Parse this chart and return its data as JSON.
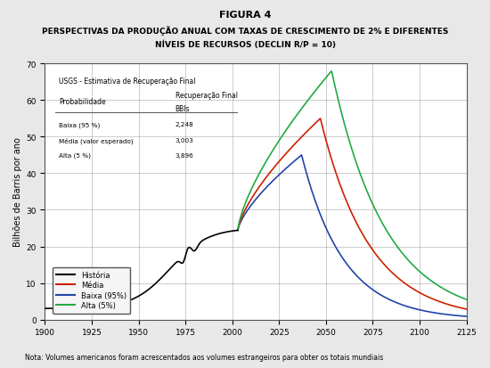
{
  "title_line1": "FIGURA 4",
  "title_line2": "PERSPECTIVAS DA PRODUÇÃO ANUAL COM TAXAS DE CRESCIMENTO DE 2% E DIFERENTES",
  "title_line3": "NÍVEIS DE RECURSOS (DECLIN R/P = 10)",
  "ylabel": "Bilhões de Barris por ano",
  "note": "Nota: Volumes americanos foram acrescentados aos volumes estrangeiros para obter os totais mundiais",
  "xlim": [
    1900,
    2125
  ],
  "ylim": [
    0,
    70
  ],
  "xticks": [
    1900,
    1925,
    1950,
    1975,
    2000,
    2025,
    2050,
    2075,
    2100,
    2125
  ],
  "yticks": [
    0,
    10,
    20,
    30,
    40,
    50,
    60,
    70
  ],
  "bg_color": "#e8e8e8",
  "plot_bg_color": "#ffffff",
  "line_colors": {
    "historia": "#000000",
    "media": "#cc2200",
    "baixa": "#2244aa",
    "alta": "#22aa44"
  },
  "legend_labels": [
    "História",
    "Média",
    "Baixa (95%)",
    "Alta (5%)"
  ],
  "table_title": "USGS - Estimativa de Recuperação Final",
  "table_col1": "Probabilidade",
  "table_col2_line1": "Recuperação Final",
  "table_col2_line2": "BBls",
  "table_rows": [
    [
      "Baixa (95 %)",
      "2,248"
    ],
    [
      "Média (valor esperado)",
      "3,003"
    ],
    [
      "Alta (5 %)",
      "3,896"
    ]
  ]
}
